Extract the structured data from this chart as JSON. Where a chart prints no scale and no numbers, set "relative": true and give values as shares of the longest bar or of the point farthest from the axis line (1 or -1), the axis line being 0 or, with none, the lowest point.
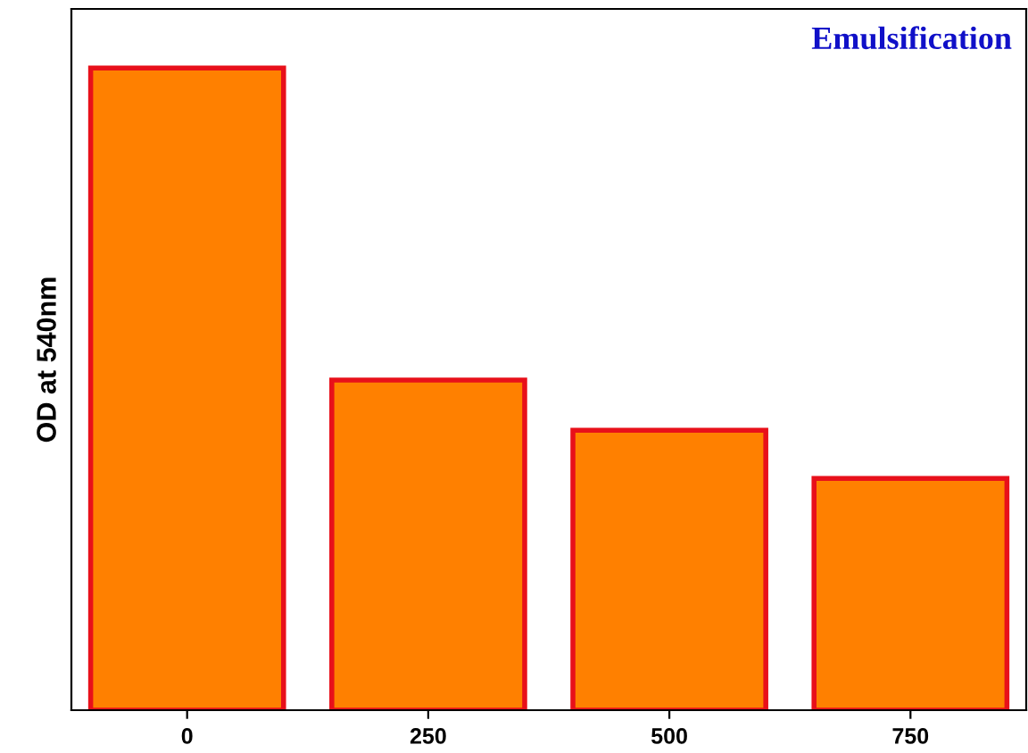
{
  "chart_data": {
    "type": "bar",
    "title": "Emulsification",
    "ylabel": "OD at 540nm",
    "categories": [
      "0",
      "250",
      "500",
      "750"
    ],
    "values": [
      1,
      0.514,
      0.436,
      0.361
    ],
    "color": "#ff8000",
    "relative": true
  }
}
